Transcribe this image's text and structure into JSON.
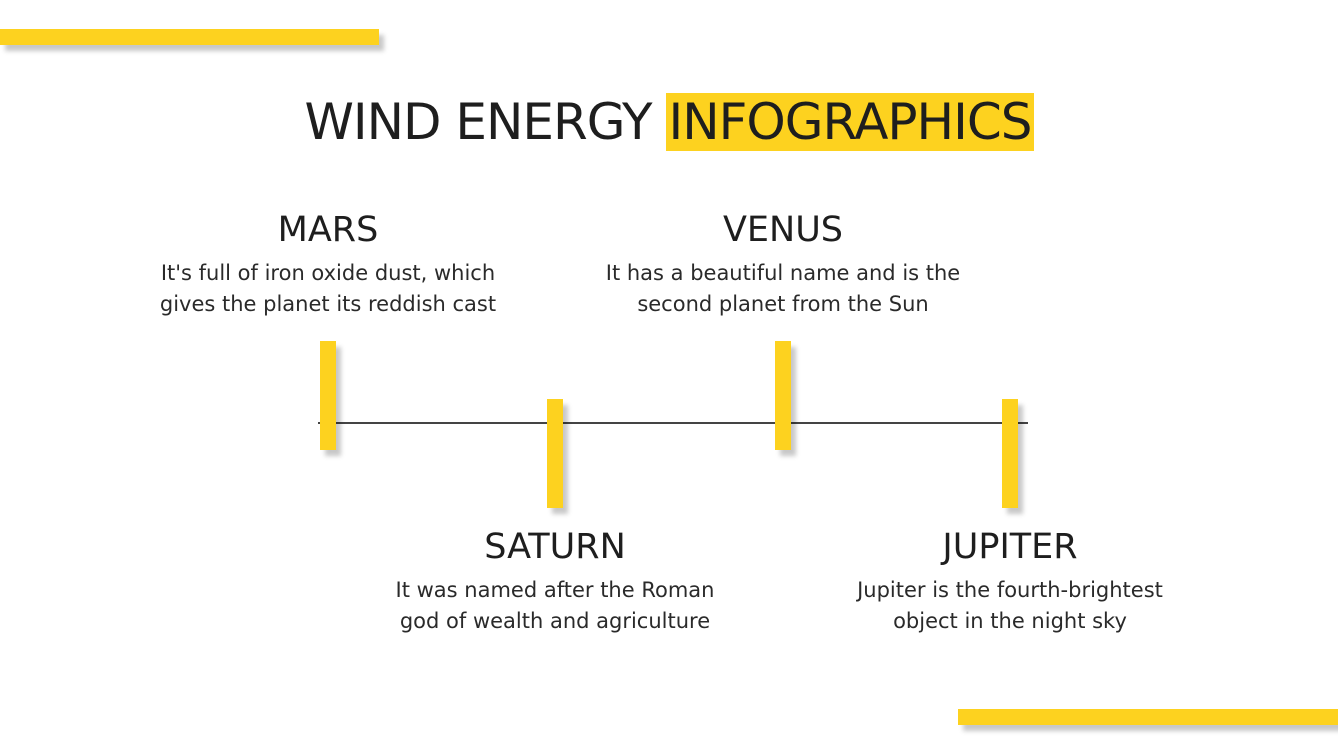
{
  "colors": {
    "accent": "#FDD21F",
    "line": "#444444",
    "text": "#1e1e1e"
  },
  "title": {
    "main": "WIND ENERGY",
    "highlight": "INFOGRAPHICS"
  },
  "items": [
    {
      "heading": "MARS",
      "text": "It's full of iron oxide dust, which gives the planet its reddish cast"
    },
    {
      "heading": "SATURN",
      "text": "It was named after the Roman god of wealth and agriculture"
    },
    {
      "heading": "VENUS",
      "text": "It has a beautiful name and is the second planet from the Sun"
    },
    {
      "heading": "JUPITER",
      "text": "Jupiter is the fourth-brightest object in the night sky"
    }
  ]
}
